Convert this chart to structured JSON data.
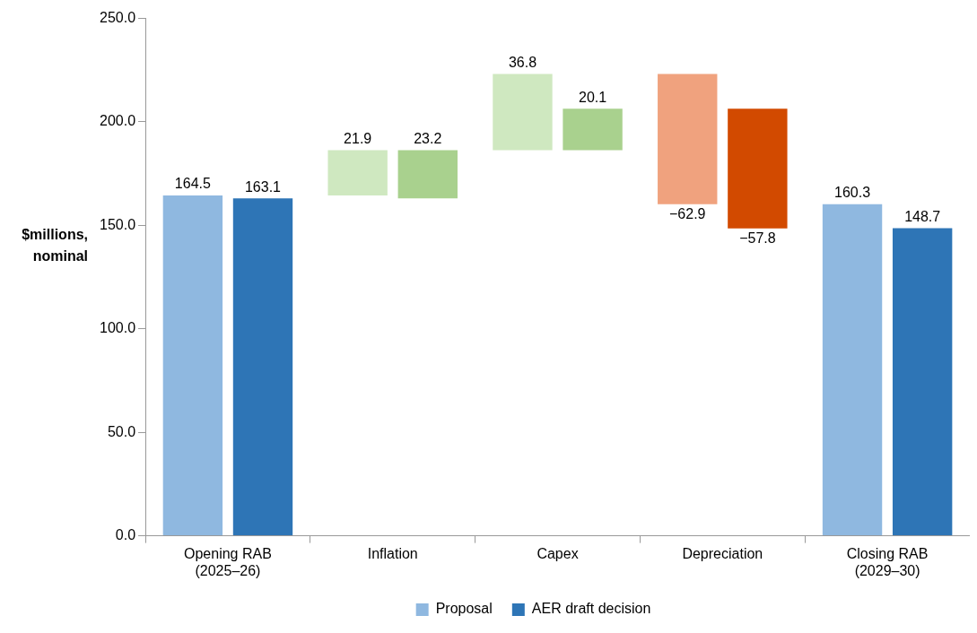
{
  "chart_data": {
    "type": "bar",
    "categories": [
      "Opening RAB (2025–26)",
      "Inflation",
      "Capex",
      "Depreciation",
      "Closing RAB (2029–30)"
    ],
    "ylabel": "$millions, nominal",
    "ylim": [
      0,
      250
    ],
    "yticks": [
      {
        "value": 0,
        "label": "0.0"
      },
      {
        "value": 50,
        "label": "50.0"
      },
      {
        "value": 100,
        "label": "100.0"
      },
      {
        "value": 150,
        "label": "150.0"
      },
      {
        "value": 200,
        "label": "200.0"
      },
      {
        "value": 250,
        "label": "250.0"
      }
    ],
    "grid": false,
    "legend": "bottom",
    "series": [
      {
        "name": "Proposal",
        "values": [
          164.5,
          21.9,
          36.8,
          -62.9,
          160.3
        ],
        "base": [
          0,
          164.5,
          186.4,
          223.2,
          0
        ],
        "colors": [
          "#8fb8e0",
          "#cfe8c0",
          "#cfe8c0",
          "#f0a27e",
          "#8fb8e0"
        ],
        "value_labels": [
          "164.5",
          "21.9",
          "36.8",
          "−62.9",
          "160.3"
        ]
      },
      {
        "name": "AER draft decision",
        "values": [
          163.1,
          23.2,
          20.1,
          -57.8,
          148.7
        ],
        "base": [
          0,
          163.1,
          186.3,
          206.4,
          0
        ],
        "colors": [
          "#2e75b6",
          "#a9d18e",
          "#a9d18e",
          "#d24a00",
          "#2e75b6"
        ],
        "value_labels": [
          "163.1",
          "23.2",
          "20.1",
          "−57.8",
          "148.7"
        ]
      }
    ]
  }
}
